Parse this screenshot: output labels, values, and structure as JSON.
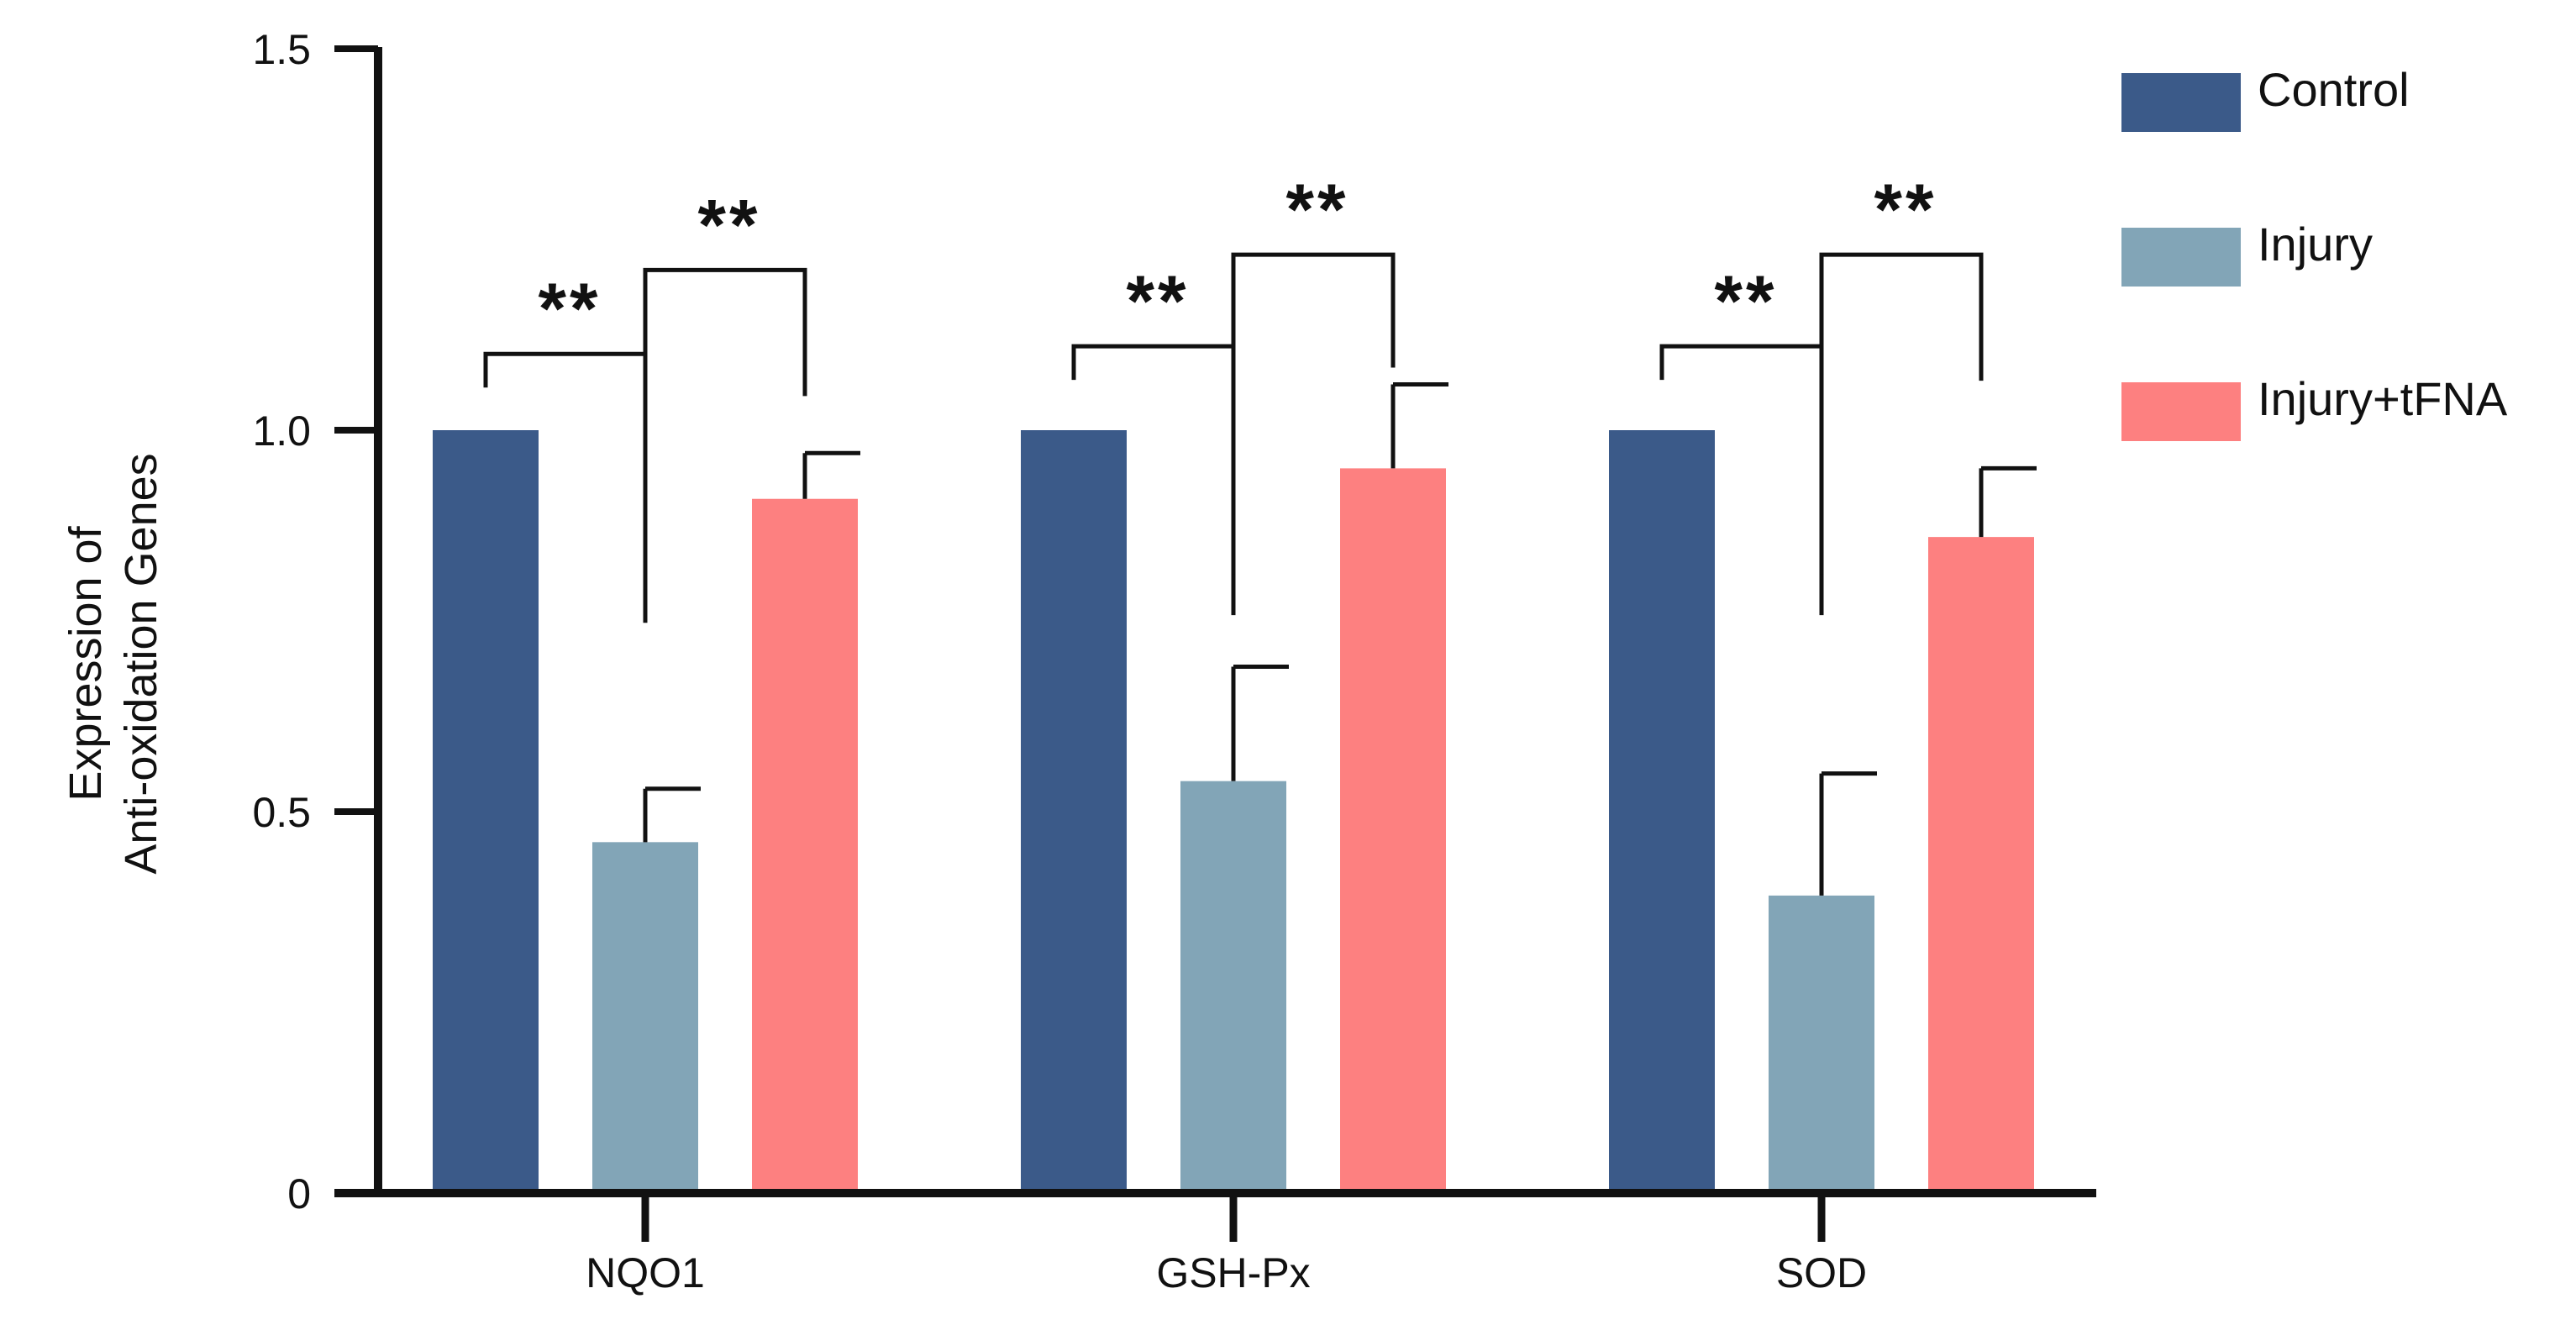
{
  "chart_data": {
    "type": "bar",
    "categories": [
      "NQO1",
      "GSH-Px",
      "SOD"
    ],
    "series": [
      {
        "name": "Control",
        "color": "#3b5a89",
        "values": [
          1.0,
          1.0,
          1.0
        ],
        "errors": [
          0,
          0,
          0
        ]
      },
      {
        "name": "Injury",
        "color": "#82a5b7",
        "values": [
          0.46,
          0.54,
          0.39
        ],
        "errors": [
          0.07,
          0.15,
          0.16
        ]
      },
      {
        "name": "Injury+tFNA",
        "color": "#fd8080",
        "values": [
          0.91,
          0.95,
          0.86
        ],
        "errors": [
          0.06,
          0.11,
          0.09
        ]
      }
    ],
    "ylabel_lines": [
      "Expression of",
      "Anti-oxidation Genes"
    ],
    "xlabel": "",
    "ylim": [
      0,
      1.5
    ],
    "yticks": [
      0,
      0.5,
      1.0,
      1.5
    ],
    "ytick_labels": [
      "0",
      "0.5",
      "1.0",
      "1.5"
    ],
    "grid": false,
    "legend_position": "right",
    "significance": [
      {
        "category": "NQO1",
        "left": [
          {
            "from": "Control",
            "to": "Injury",
            "label": "**",
            "level": 1.1
          },
          {
            "from": "Injury",
            "to": "Injury+tFNA",
            "label": "**",
            "level": 1.21
          }
        ]
      },
      {
        "category": "GSH-Px",
        "left": [
          {
            "from": "Control",
            "to": "Injury",
            "label": "**",
            "level": 1.11
          },
          {
            "from": "Injury",
            "to": "Injury+tFNA",
            "label": "**",
            "level": 1.23
          }
        ]
      },
      {
        "category": "SOD",
        "left": [
          {
            "from": "Control",
            "to": "Injury",
            "label": "**",
            "level": 1.11
          },
          {
            "from": "Injury",
            "to": "Injury+tFNA",
            "label": "**",
            "level": 1.23
          }
        ]
      }
    ]
  }
}
